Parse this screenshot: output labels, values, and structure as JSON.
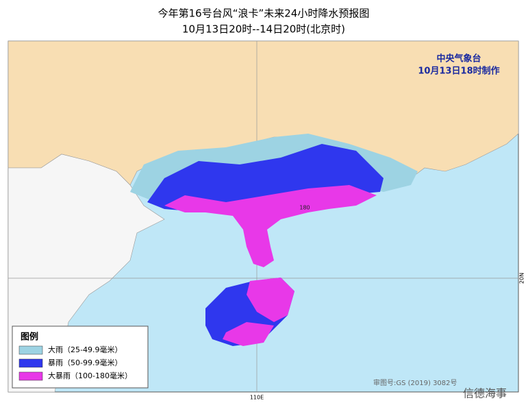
{
  "header": {
    "title": "今年第16号台风“浪卡”未来24小时降水预报图",
    "subtitle": "10月13日20时--14日20时(北京时)"
  },
  "issuer": {
    "agency": "中央气象台",
    "time": "10月13日18时制作"
  },
  "map": {
    "max_label": "180",
    "lat_label": "20N",
    "lon_label": "110E",
    "approval": "审图号:GS (2019) 3082号"
  },
  "legend": {
    "title": "图例",
    "items": [
      {
        "label": "大雨（25-49.9毫米）",
        "color": "#9dd3e3"
      },
      {
        "label": "暴雨（50-99.9毫米）",
        "color": "#2f37ee"
      },
      {
        "label": "大暴雨（100-180毫米）",
        "color": "#e838e8"
      }
    ]
  },
  "watermark": "信德海事"
}
